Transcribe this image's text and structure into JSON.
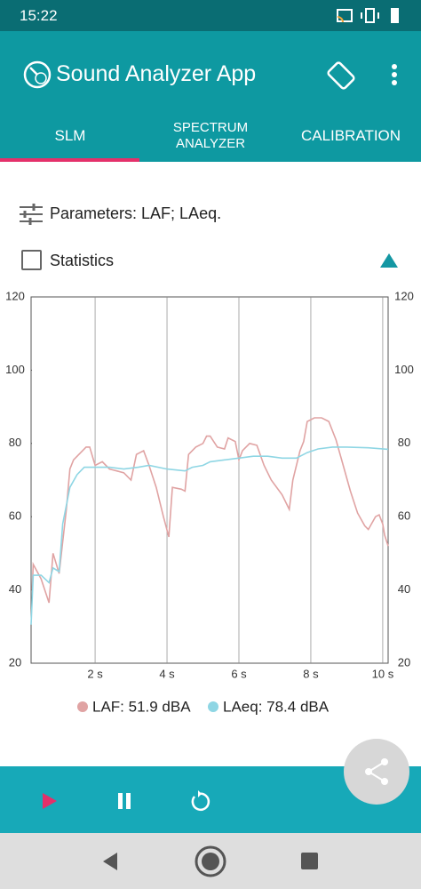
{
  "status_bar": {
    "time": "15:22"
  },
  "app_bar": {
    "title": "Sound Analyzer App"
  },
  "tabs": [
    "SLM",
    "SPECTRUM ANALYZER",
    "CALIBRATION"
  ],
  "parameters": "Parameters: LAF; LAeq.",
  "statistics": "Statistics",
  "chart_data": {
    "type": "line",
    "xlim": [
      0.22,
      10.15
    ],
    "ylim": [
      20,
      120
    ],
    "xticks": [
      {
        "value": 2,
        "label": "2 s"
      },
      {
        "value": 4,
        "label": "4 s"
      },
      {
        "value": 6,
        "label": "6 s"
      },
      {
        "value": 8,
        "label": "8 s"
      },
      {
        "value": 10,
        "label": "10 s"
      }
    ],
    "yticks": [
      20,
      40,
      60,
      80,
      100,
      120
    ],
    "grid": "x",
    "series": [
      {
        "name": "LAF: 51.9 dBA",
        "color": "#e0a3a3",
        "x": [
          0.25,
          0.28,
          0.5,
          0.72,
          0.83,
          1.0,
          1.2,
          1.3,
          1.4,
          1.6,
          1.75,
          1.85,
          2.0,
          2.2,
          2.4,
          2.6,
          2.8,
          3.0,
          3.15,
          3.35,
          3.5,
          3.7,
          3.9,
          4.05,
          4.15,
          4.4,
          4.5,
          4.6,
          4.8,
          5.0,
          5.1,
          5.2,
          5.4,
          5.6,
          5.7,
          5.9,
          6.0,
          6.1,
          6.3,
          6.5,
          6.7,
          6.9,
          7.2,
          7.4,
          7.5,
          7.7,
          7.8,
          7.9,
          8.1,
          8.3,
          8.5,
          8.7,
          8.9,
          9.1,
          9.3,
          9.5,
          9.6,
          9.8,
          9.9,
          10.0,
          10.05,
          10.15
        ],
        "values": [
          40,
          47,
          43,
          36.5,
          50,
          44.5,
          62,
          73,
          75.5,
          77.5,
          79,
          79,
          74,
          75,
          73,
          72.5,
          72,
          70,
          77,
          78,
          74,
          68,
          60,
          54.5,
          68,
          67.5,
          67,
          77,
          79,
          80,
          82,
          82,
          79,
          78.5,
          81.5,
          80.5,
          75.5,
          78,
          80,
          79.5,
          74,
          70,
          66,
          62,
          70,
          78,
          80.5,
          86,
          87,
          87,
          86,
          81,
          74,
          67,
          61,
          57.5,
          56.5,
          60,
          60.5,
          58,
          55,
          52
        ]
      },
      {
        "name": "LAeq: 78.4 dBA",
        "color": "#8fd6e4",
        "x": [
          0.22,
          0.28,
          0.5,
          0.72,
          0.83,
          1.0,
          1.1,
          1.3,
          1.5,
          1.7,
          2.0,
          2.4,
          2.8,
          3.2,
          3.5,
          4.0,
          4.5,
          4.7,
          5.0,
          5.2,
          5.6,
          6.0,
          6.4,
          6.8,
          7.2,
          7.6,
          7.9,
          8.2,
          8.6,
          9.0,
          9.6,
          10.15
        ],
        "values": [
          30.5,
          44,
          44,
          42,
          46,
          45,
          58,
          68,
          71.5,
          73.5,
          73.5,
          73.5,
          73,
          73.5,
          74,
          73,
          72.5,
          73.5,
          74,
          75,
          75.5,
          76,
          76.5,
          76.5,
          76,
          76,
          77.5,
          78.5,
          79,
          79,
          78.8,
          78.4
        ]
      }
    ]
  }
}
